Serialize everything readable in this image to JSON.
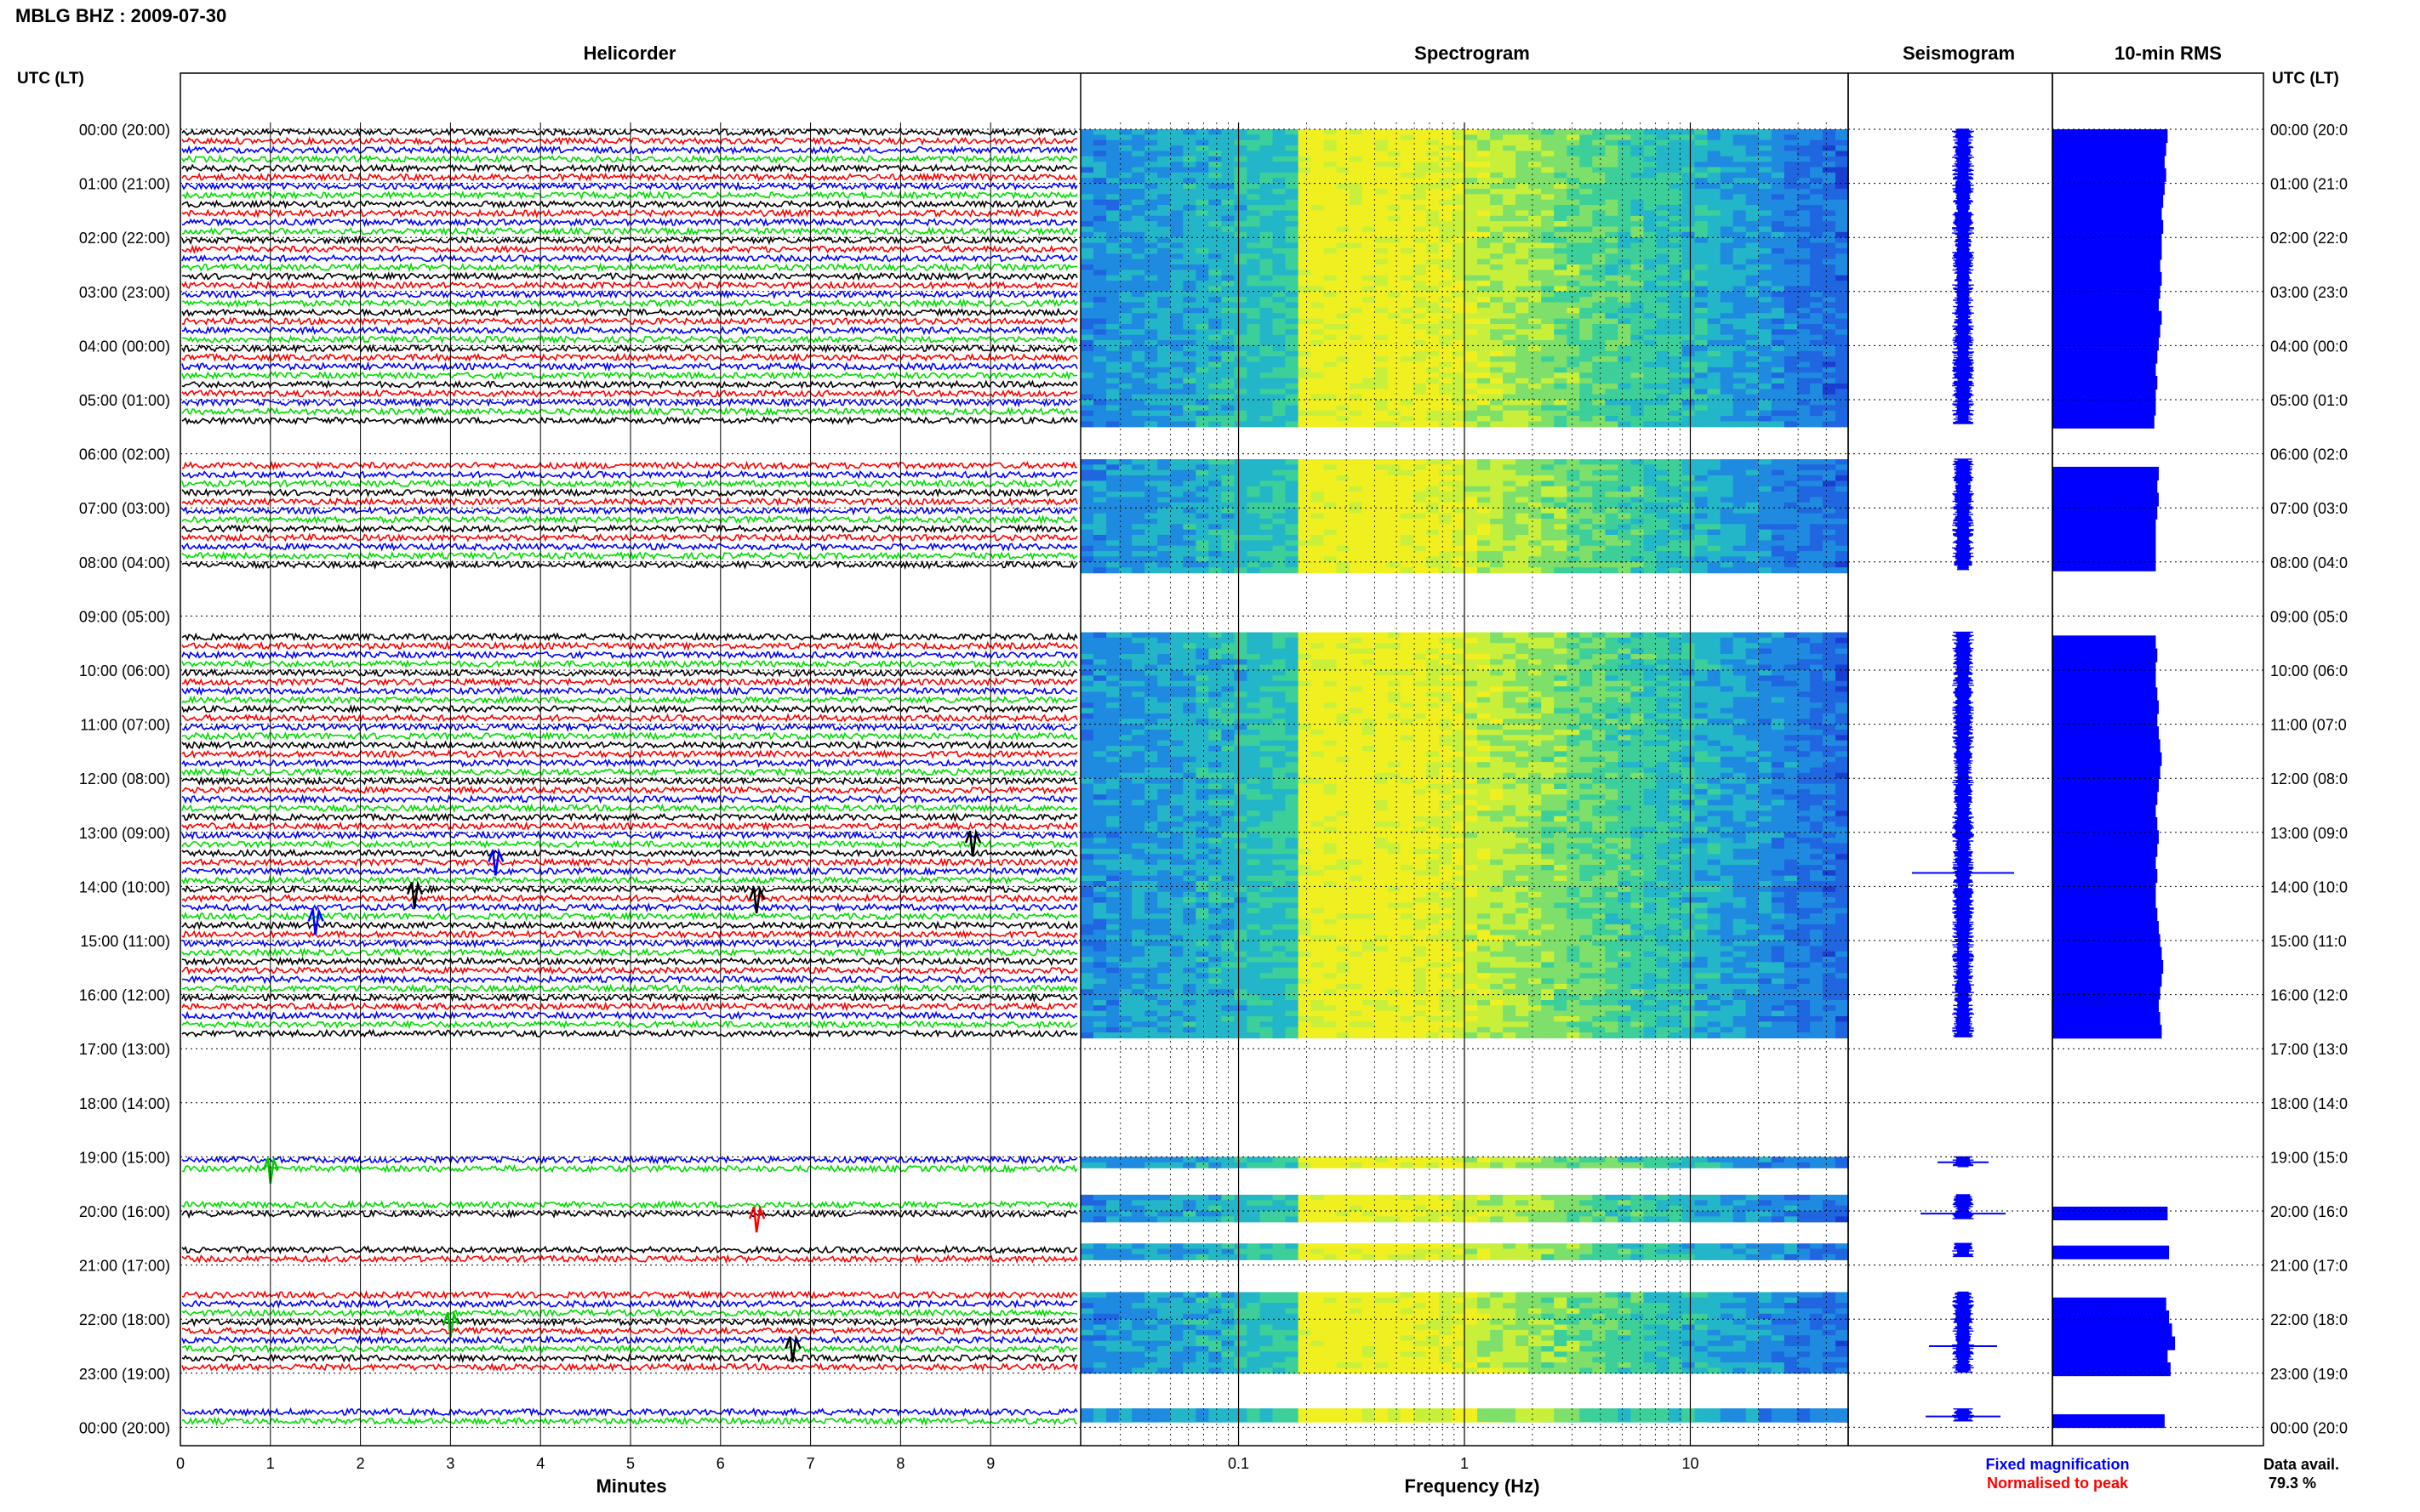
{
  "header": {
    "station_title": "MBLG BHZ : 2009-07-30",
    "utc_left_label": "UTC (LT)",
    "utc_right_label": "UTC (LT)"
  },
  "panels": {
    "helicorder": "Helicorder",
    "spectrogram": "Spectrogram",
    "seismogram": "Seismogram",
    "rms": "10-min RMS"
  },
  "axes": {
    "minutes_label": "Minutes",
    "minutes_ticks": [
      "0",
      "1",
      "2",
      "3",
      "4",
      "5",
      "6",
      "7",
      "8",
      "9"
    ],
    "frequency_label": "Frequency (Hz)",
    "frequency_ticks": [
      "0.1",
      "1",
      "10"
    ]
  },
  "time_labels": [
    "00:00 (20:00)",
    "01:00 (21:00)",
    "02:00 (22:00)",
    "03:00 (23:00)",
    "04:00 (00:00)",
    "05:00 (01:00)",
    "06:00 (02:00)",
    "07:00 (03:00)",
    "08:00 (04:00)",
    "09:00 (05:00)",
    "10:00 (06:00)",
    "11:00 (07:00)",
    "12:00 (08:00)",
    "13:00 (09:00)",
    "14:00 (10:00)",
    "15:00 (11:00)",
    "16:00 (12:00)",
    "17:00 (13:00)",
    "18:00 (14:00)",
    "19:00 (15:00)",
    "20:00 (16:00)",
    "21:00 (17:00)",
    "22:00 (18:00)",
    "23:00 (19:00)",
    "00:00 (20:00)"
  ],
  "time_labels_right": [
    "00:00 (20:0",
    "01:00 (21:0",
    "02:00 (22:0",
    "03:00 (23:0",
    "04:00 (00:0",
    "05:00 (01:0",
    "06:00 (02:0",
    "07:00 (03:0",
    "08:00 (04:0",
    "09:00 (05:0",
    "10:00 (06:0",
    "11:00 (07:0",
    "12:00 (08:0",
    "13:00 (09:0",
    "14:00 (10:0",
    "15:00 (11:0",
    "16:00 (12:0",
    "17:00 (13:0",
    "18:00 (14:0",
    "19:00 (15:0",
    "20:00 (16:0",
    "21:00 (17:0",
    "22:00 (18:0",
    "23:00 (19:0",
    "00:00 (20:0"
  ],
  "legend": {
    "fixed": "Fixed magnification",
    "normalised": "Normalised to peak",
    "fixed_color": "#0000ff",
    "normalised_color": "#ff0000"
  },
  "data_availability": {
    "label": "Data avail.",
    "value": "79.3 %"
  },
  "chart_data": {
    "type": "heatmap",
    "title": "MBLG BHZ : 2009-07-30",
    "helicorder": {
      "trace_colors": [
        "#000000",
        "#ff0000",
        "#0000ff",
        "#00dd00"
      ],
      "xlabel": "Minutes",
      "xlim": [
        0,
        10
      ],
      "rows_per_hour": 6,
      "hours": 24
    },
    "spectrogram": {
      "xlabel": "Frequency (Hz)",
      "xscale": "log",
      "xlim": [
        0.02,
        50
      ]
    },
    "data_segments_hours": [
      [
        0,
        16.8
      ],
      [
        19.0,
        19.2
      ],
      [
        19.7,
        20.15
      ],
      [
        20.6,
        20.85
      ],
      [
        21.5,
        23.0
      ],
      [
        23.65,
        23.9
      ]
    ],
    "gaps_hours": [
      [
        5.45,
        6.1
      ],
      [
        8.15,
        9.3
      ]
    ],
    "rms_levels": [
      0.78,
      0.77,
      0.76,
      0.77,
      0.76,
      0.75,
      0.74,
      0.75,
      0.74,
      0.74,
      0.73,
      0.74,
      0.73,
      0.72,
      0.74,
      0.73,
      0.72,
      0.71,
      0.7,
      0.71,
      0.7,
      0.7,
      0.69,
      0.7,
      0.7,
      0.71,
      0.72,
      0.71,
      0.72,
      0.71,
      0.7,
      0.7,
      0.7,
      0.7,
      0.7,
      0.72,
      0.73,
      0.72,
      0.71,
      0.7,
      0.71,
      0.7,
      0.7,
      0.71,
      0.72,
      0.71,
      0.72,
      0.73,
      0.74,
      0.73,
      0.72,
      0.71,
      0.7,
      0.71,
      0.72,
      0.71,
      0.7,
      0.71,
      0.7,
      0.7,
      0.71,
      0.72,
      0.73,
      0.74,
      0.75,
      0.74,
      0.73,
      0.72,
      0.73,
      0.74,
      0.75,
      0.74,
      0.75,
      0.76,
      0.77,
      0.78,
      0.8,
      0.76,
      0.77,
      0.78,
      0.8,
      0.76,
      0.77,
      0.78,
      0.8,
      0.78,
      0.79,
      0.82,
      0.79,
      0.78,
      0.77,
      0.79,
      0.81,
      0.83,
      0.78,
      0.8,
      0.78,
      0.77,
      0.76,
      0.76,
      0.76
    ]
  }
}
